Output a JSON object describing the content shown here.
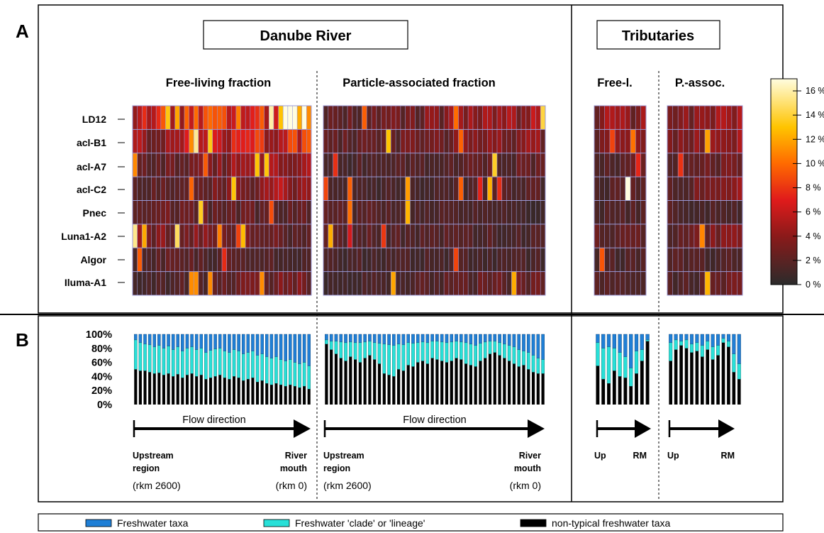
{
  "panel_a_label": "A",
  "panel_b_label": "B",
  "danube_title": "Danube River",
  "tributaries_title": "Tributaries",
  "fractions": {
    "danube_free": "Free-living fraction",
    "danube_particle": "Particle-associated fraction",
    "trib_free": "Free-l.",
    "trib_particle": "P.-assoc."
  },
  "colorbar": {
    "ticks": [
      "16 %",
      "14 %",
      "12 %",
      "10 %",
      "8 %",
      "6 %",
      "4 %",
      "2 %",
      "0 %"
    ],
    "colors": [
      "#2b2b2b",
      "#8b1a1a",
      "#e01b1b",
      "#ff6a00",
      "#ffc400",
      "#fffde0"
    ]
  },
  "colors": {
    "freshwater": "#1f7fd6",
    "clade": "#28e0d8",
    "nontypical": "#000000",
    "grid": "#9a9ad8"
  },
  "flow": {
    "label": "Flow direction",
    "upstream": [
      "Upstream",
      "region"
    ],
    "mouth": [
      "River",
      "mouth"
    ],
    "rkm_up": "(rkm 2600)",
    "rkm_mouth": "(rkm 0)",
    "trib_up": "Up",
    "trib_rm": "RM"
  },
  "legend": {
    "freshwater": "Freshwater taxa",
    "clade": "Freshwater 'clade' or 'lineage'",
    "nontypical": "non-typical freshwater taxa"
  },
  "chart_data": [
    {
      "type": "heatmap",
      "rows": [
        "LD12",
        "acl-B1",
        "acl-A7",
        "acl-C2",
        "Pnec",
        "Luna1-A2",
        "Algor",
        "Iluma-A1"
      ],
      "vmin": 0,
      "vmax": 17,
      "unit": "%",
      "panels": [
        {
          "name": "Free-living fraction",
          "cols": 38,
          "row_profile": [
            [
              6,
              9
            ],
            [
              4,
              7
            ],
            [
              2,
              5
            ],
            [
              1.5,
              5
            ],
            [
              2.5,
              2
            ],
            [
              4,
              2
            ],
            [
              2,
              1.5
            ],
            [
              1,
              3.5
            ]
          ]
        },
        {
          "name": "Particle-associated fraction",
          "cols": 46,
          "row_profile": [
            [
              2,
              4.5
            ],
            [
              2,
              3.5
            ],
            [
              1.3,
              2.3
            ],
            [
              1,
              1.8
            ],
            [
              2,
              1
            ],
            [
              2,
              1.5
            ],
            [
              1.3,
              1.3
            ],
            [
              1,
              2.5
            ]
          ]
        },
        {
          "name": "Free-l.",
          "cols": 10,
          "row_profile": [
            [
              4,
              4
            ],
            [
              3,
              3
            ],
            [
              2,
              2
            ],
            [
              1.5,
              2
            ],
            [
              1.5,
              1.5
            ],
            [
              2.5,
              2
            ],
            [
              1.5,
              1.5
            ],
            [
              1.5,
              1.5
            ]
          ]
        },
        {
          "name": "P.-assoc.",
          "cols": 14,
          "row_profile": [
            [
              3,
              4.5
            ],
            [
              3,
              4
            ],
            [
              2,
              3
            ],
            [
              2,
              3.5
            ],
            [
              1.5,
              1.5
            ],
            [
              2.5,
              3
            ],
            [
              1.5,
              1.5
            ],
            [
              1.5,
              2.5
            ]
          ]
        }
      ]
    },
    {
      "type": "bar",
      "stacked": true,
      "ylim": [
        0,
        100
      ],
      "yticks": [
        "100%",
        "80%",
        "60%",
        "40%",
        "20%",
        "0%"
      ],
      "series_order": [
        "non-typical freshwater taxa",
        "Freshwater 'clade' or 'lineage'",
        "Freshwater taxa"
      ],
      "panels": [
        {
          "name": "Free-living fraction",
          "nontypical": [
            50,
            48,
            48,
            46,
            44,
            45,
            42,
            44,
            40,
            43,
            38,
            42,
            44,
            40,
            42,
            36,
            38,
            40,
            42,
            38,
            36,
            40,
            38,
            34,
            36,
            38,
            32,
            34,
            30,
            28,
            30,
            28,
            26,
            28,
            26,
            24,
            26,
            22
          ],
          "top": [
            92,
            88,
            86,
            85,
            82,
            84,
            80,
            83,
            78,
            82,
            76,
            80,
            82,
            78,
            80,
            74,
            77,
            79,
            80,
            76,
            74,
            78,
            76,
            72,
            74,
            76,
            70,
            72,
            68,
            66,
            68,
            64,
            62,
            64,
            60,
            58,
            60,
            55
          ]
        },
        {
          "name": "Particle-associated fraction",
          "nontypical": [
            86,
            78,
            72,
            66,
            62,
            68,
            64,
            60,
            66,
            70,
            64,
            58,
            44,
            42,
            40,
            50,
            48,
            56,
            54,
            60,
            62,
            58,
            66,
            64,
            62,
            60,
            62,
            66,
            64,
            58,
            56,
            54,
            62,
            66,
            72,
            74,
            70,
            66,
            62,
            58,
            54,
            56,
            50,
            46,
            44,
            44
          ],
          "top": [
            92,
            90,
            90,
            89,
            88,
            89,
            88,
            88,
            89,
            90,
            88,
            87,
            86,
            85,
            84,
            86,
            85,
            88,
            87,
            88,
            89,
            88,
            90,
            90,
            89,
            88,
            89,
            90,
            89,
            88,
            86,
            84,
            87,
            89,
            90,
            90,
            88,
            86,
            84,
            82,
            78,
            76,
            74,
            70,
            66,
            64
          ]
        },
        {
          "name": "Free-l.",
          "nontypical": [
            55,
            36,
            30,
            48,
            40,
            38,
            26,
            44,
            62,
            90
          ],
          "top": [
            88,
            80,
            82,
            80,
            74,
            68,
            52,
            76,
            78,
            92
          ]
        },
        {
          "name": "P.-assoc.",
          "nontypical": [
            62,
            78,
            84,
            80,
            74,
            76,
            68,
            78,
            64,
            70,
            88,
            82,
            46,
            36
          ],
          "top": [
            88,
            92,
            90,
            92,
            86,
            88,
            84,
            90,
            82,
            84,
            94,
            90,
            72,
            58
          ]
        }
      ]
    }
  ]
}
